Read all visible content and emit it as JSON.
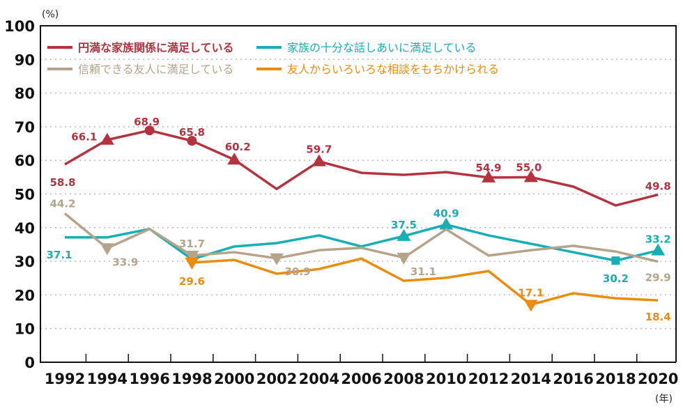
{
  "chart_data": {
    "type": "line",
    "title": "",
    "xlabel": "(年)",
    "ylabel": "(%)",
    "ylim": [
      0,
      100
    ],
    "yticks": [
      "0",
      "10",
      "20",
      "30",
      "40",
      "50",
      "60",
      "70",
      "80",
      "90",
      "100"
    ],
    "categories": [
      "1992",
      "1994",
      "1996",
      "1998",
      "2000",
      "2002",
      "2004",
      "2006",
      "2008",
      "2010",
      "2012",
      "2014",
      "2016",
      "2018",
      "2020"
    ],
    "grid": true,
    "legend": "top-left",
    "series": [
      {
        "name": "円満な家族関係に満足している",
        "color": "#b5323f",
        "values": [
          58.8,
          66.1,
          68.9,
          65.8,
          60.2,
          51.5,
          59.7,
          56.3,
          55.7,
          56.5,
          54.9,
          55.0,
          52.2,
          46.6,
          49.8
        ],
        "markers": [
          null,
          "triangle-up",
          "circle",
          "circle",
          "triangle-up",
          null,
          "triangle-up",
          null,
          null,
          null,
          "triangle-up",
          "triangle-up",
          null,
          null,
          null
        ],
        "labels": [
          "58.8",
          "66.1",
          "68.9",
          "65.8",
          "60.2",
          null,
          "59.7",
          null,
          null,
          null,
          "54.9",
          "55.0",
          null,
          null,
          "49.8"
        ]
      },
      {
        "name": "家族の十分な話しあいに満足している",
        "color": "#17aeb5",
        "values": [
          37.1,
          37.1,
          39.6,
          30.6,
          34.4,
          35.4,
          37.7,
          34.4,
          37.5,
          40.9,
          37.7,
          35.2,
          32.7,
          30.2,
          33.2
        ],
        "markers": [
          null,
          null,
          null,
          null,
          null,
          null,
          null,
          null,
          "triangle-up",
          "triangle-up",
          null,
          null,
          null,
          "square",
          "triangle-up"
        ],
        "labels": [
          "37.1",
          null,
          null,
          null,
          null,
          null,
          null,
          null,
          "37.5",
          "40.9",
          null,
          null,
          null,
          "30.2",
          "33.2"
        ]
      },
      {
        "name": "信頼できる友人に満足している",
        "color": "#b5a48a",
        "values": [
          44.2,
          33.9,
          39.6,
          31.7,
          32.7,
          30.9,
          33.3,
          34.0,
          31.1,
          39.5,
          31.7,
          33.3,
          34.6,
          32.9,
          29.9
        ],
        "markers": [
          null,
          "triangle-down",
          null,
          "triangle-down",
          null,
          "triangle-down",
          null,
          null,
          "triangle-down",
          null,
          null,
          null,
          null,
          null,
          null
        ],
        "labels": [
          "44.2",
          "33.9",
          null,
          "31.7",
          null,
          "30.9",
          null,
          null,
          "31.1",
          null,
          null,
          null,
          null,
          null,
          "29.9"
        ]
      },
      {
        "name": "友人からいろいろな相談をもちかけられる",
        "color": "#ec8c0e",
        "values": [
          null,
          null,
          null,
          29.6,
          30.4,
          26.3,
          27.7,
          30.8,
          24.2,
          25.1,
          27.1,
          17.1,
          20.5,
          19.0,
          18.4
        ],
        "markers": [
          null,
          null,
          null,
          "triangle-down",
          null,
          null,
          null,
          null,
          null,
          null,
          null,
          "triangle-down",
          null,
          null,
          null
        ],
        "labels": [
          null,
          null,
          null,
          "29.6",
          null,
          null,
          null,
          null,
          null,
          null,
          null,
          "17.1",
          null,
          null,
          "18.4"
        ]
      }
    ]
  }
}
